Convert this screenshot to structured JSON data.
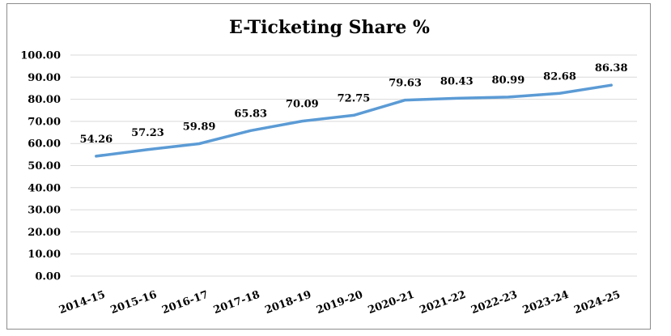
{
  "chart_data": {
    "type": "line",
    "title": "E-Ticketing Share %",
    "xlabel": "",
    "ylabel": "",
    "categories": [
      "2014-15",
      "2015-16",
      "2016-17",
      "2017-18",
      "2018-19",
      "2019-20",
      "2020-21",
      "2021-22",
      "2022-23",
      "2023-24",
      "2024-25"
    ],
    "series": [
      {
        "values": [
          54.26,
          57.23,
          59.89,
          65.83,
          70.09,
          72.75,
          79.63,
          80.43,
          80.99,
          82.68,
          86.38
        ]
      }
    ],
    "data_labels": [
      "54.26",
      "57.23",
      "59.89",
      "65.83",
      "70.09",
      "72.75",
      "79.63",
      "80.43",
      "80.99",
      "82.68",
      "86.38"
    ],
    "ylim": [
      0,
      100
    ],
    "y_ticks": [
      "0.00",
      "10.00",
      "20.00",
      "30.00",
      "40.00",
      "50.00",
      "60.00",
      "70.00",
      "80.00",
      "90.00",
      "100.00"
    ],
    "grid": true,
    "legend": "none",
    "line_color": "#5b9bd5"
  }
}
